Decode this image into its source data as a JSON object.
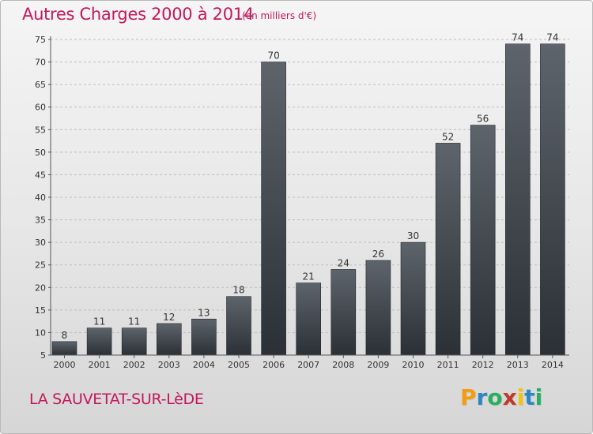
{
  "title": "Autres Charges 2000 à 2014",
  "subtitle": "(en milliers d'€)",
  "city": "LA SAUVETAT-SUR-LèDE",
  "logo": {
    "letters": [
      "P",
      "r",
      "o",
      "x",
      "i",
      "t",
      "i"
    ],
    "colors": [
      "#f39c12",
      "#2e86c1",
      "#27ae60",
      "#c0392b",
      "#f1c40f",
      "#2e86c1",
      "#27ae60"
    ]
  },
  "colors": {
    "accent": "#c2185b",
    "bar_top": "#5e646b",
    "bar_bottom": "#2b3036",
    "grid": "#bdbdbd",
    "axis": "#555555"
  },
  "chart_data": {
    "type": "bar",
    "title": "Autres Charges 2000 à 2014",
    "subtitle": "(en milliers d'€)",
    "categories": [
      "2000",
      "2001",
      "2002",
      "2003",
      "2004",
      "2005",
      "2006",
      "2007",
      "2008",
      "2009",
      "2010",
      "2011",
      "2012",
      "2013",
      "2014"
    ],
    "values": [
      8,
      11,
      11,
      12,
      13,
      18,
      70,
      21,
      24,
      26,
      30,
      52,
      56,
      74,
      74
    ],
    "ylim": [
      5,
      75
    ],
    "yticks": [
      5,
      10,
      15,
      20,
      25,
      30,
      35,
      40,
      45,
      50,
      55,
      60,
      65,
      70,
      75
    ],
    "grid": true,
    "data_labels": true
  }
}
